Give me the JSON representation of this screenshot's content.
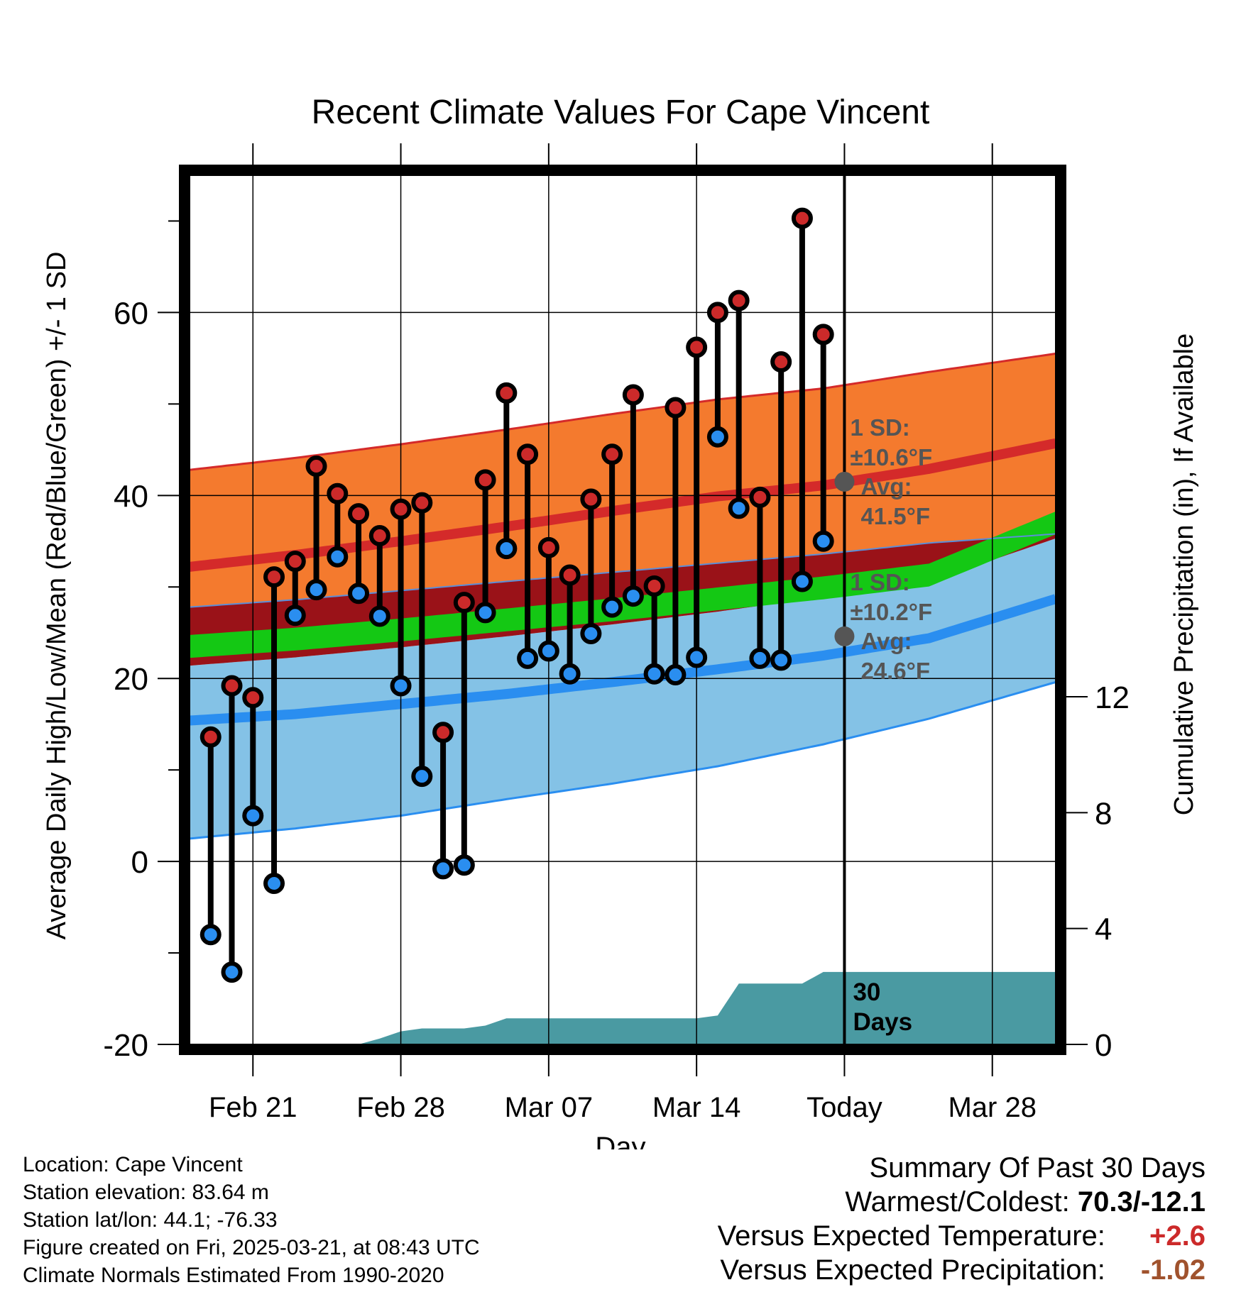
{
  "colors": {
    "high_band": "#f47a2e",
    "high_band_edge": "#d42a2a",
    "high_mean": "#d42a2a",
    "overlap_band": "#9a1218",
    "mean_band": "#14c814",
    "low_band": "#84c2e6",
    "low_band_edge": "#2a8ef0",
    "low_mean": "#2a8ef0",
    "high_dot": "#cc2a2a",
    "low_dot": "#2a8ef0",
    "precip": "#4a9aa2",
    "annotation": "#555555",
    "temp_anomaly": "#cc2a2a",
    "precip_anomaly": "#a0522d"
  },
  "chart_data": {
    "type": "line",
    "title": "Recent Climate Values For Cape Vincent",
    "xlabel": "Day",
    "ylabel": "Average Daily High/Low/Mean (Red/Blue/Green) +/- 1 SD",
    "y2label": "Cumulative Precipitation (in), If Available",
    "x_tick_labels": [
      "Feb 21",
      "Feb 28",
      "Mar 07",
      "Mar 14",
      "Today",
      "Mar 28"
    ],
    "x_tick_days": [
      3,
      10,
      17,
      24,
      31,
      38
    ],
    "x_range_days": [
      0,
      41
    ],
    "ylim": [
      -20,
      75
    ],
    "y_ticks": [
      -20,
      0,
      20,
      40,
      60
    ],
    "y2lim": [
      0,
      30
    ],
    "y2_ticks": [
      0,
      4,
      8,
      12
    ],
    "today_day": 31,
    "observed_days": [
      1,
      2,
      3,
      4,
      5,
      6,
      7,
      8,
      9,
      10,
      11,
      12,
      13,
      14,
      15,
      16,
      17,
      18,
      19,
      20,
      21,
      22,
      23,
      24,
      25,
      26,
      27,
      28,
      29,
      30
    ],
    "observed_high": [
      13.6,
      19.2,
      17.9,
      31.1,
      32.8,
      43.2,
      40.2,
      38.0,
      35.6,
      38.5,
      39.2,
      14.1,
      28.3,
      41.7,
      51.2,
      44.5,
      34.3,
      31.3,
      39.6,
      44.5,
      51.0,
      30.1,
      49.6,
      56.2,
      60.0,
      61.3,
      39.8,
      54.6,
      70.3,
      57.6
    ],
    "observed_low": [
      -8.0,
      -12.1,
      5.0,
      -2.4,
      26.9,
      29.7,
      33.3,
      29.3,
      26.8,
      19.2,
      9.3,
      -0.8,
      -0.4,
      27.2,
      34.2,
      22.2,
      23.0,
      20.5,
      24.9,
      27.8,
      29.0,
      20.5,
      20.4,
      22.3,
      46.4,
      38.6,
      22.2,
      22.0,
      30.6,
      35.0
    ],
    "normal_days": [
      0,
      5,
      10,
      15,
      20,
      25,
      30,
      35,
      41
    ],
    "normal_high_mean": [
      32.2,
      33.5,
      35.0,
      36.6,
      38.3,
      39.9,
      41.1,
      42.9,
      45.7
    ],
    "normal_high_upper": [
      42.8,
      44.1,
      45.6,
      47.2,
      48.9,
      50.5,
      51.7,
      53.5,
      55.5
    ],
    "normal_high_lower": [
      27.8,
      28.6,
      29.6,
      30.6,
      31.6,
      32.6,
      33.6,
      34.8,
      35.8
    ],
    "normal_mean": [
      23.5,
      24.3,
      25.3,
      26.4,
      27.5,
      28.7,
      29.9,
      31.3,
      37.0
    ],
    "normal_low_mean": [
      15.4,
      16.1,
      17.2,
      18.3,
      19.6,
      21.0,
      22.5,
      24.4,
      28.7
    ],
    "normal_low_upper": [
      21.4,
      22.3,
      23.4,
      24.6,
      25.9,
      27.3,
      28.9,
      30.6,
      35.3
    ],
    "normal_low_lower": [
      2.5,
      3.6,
      5.0,
      6.8,
      8.5,
      10.4,
      12.8,
      15.6,
      19.6
    ],
    "precip_days": [
      0,
      8,
      9,
      10,
      11,
      13,
      14,
      15,
      24,
      25,
      26,
      29,
      30,
      31,
      41
    ],
    "precip_values": [
      0,
      0,
      0.2,
      0.45,
      0.55,
      0.55,
      0.65,
      0.9,
      0.9,
      1.0,
      2.1,
      2.1,
      2.5,
      2.5,
      2.5
    ],
    "annotations": {
      "high_sd_label": "1 SD:",
      "high_sd_value": "±10.6°F",
      "high_avg_label": "Avg:",
      "high_avg_value": "41.5°F",
      "low_sd_label": "1 SD:",
      "low_sd_value": "±10.2°F",
      "low_avg_label": "Avg:",
      "low_avg_value": "24.6°F",
      "high_avg": 41.5,
      "low_avg": 24.6,
      "period_count": "30",
      "period_unit": "Days"
    }
  },
  "footer": {
    "location": "Location: Cape Vincent",
    "elevation": "Station elevation: 83.64 m",
    "latlon": "Station lat/lon: 44.1; -76.33",
    "created": "Figure created on Fri, 2025-03-21, at 08:43 UTC",
    "normals": "Climate Normals Estimated From 1990-2020"
  },
  "summary": {
    "title": "Summary Of Past 30 Days",
    "warmest_coldest_label": "Warmest/Coldest:",
    "warmest_coldest_value": "70.3/-12.1",
    "temp_label": "Versus Expected Temperature:",
    "temp_value": "+2.6",
    "precip_label": "Versus Expected Precipitation:",
    "precip_value": "-1.02"
  }
}
